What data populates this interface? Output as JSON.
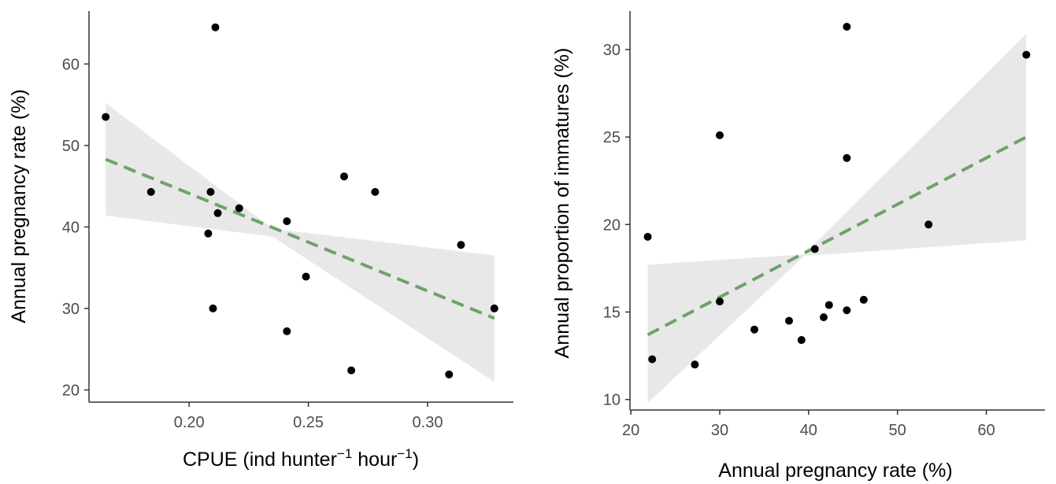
{
  "colors": {
    "points": "#000000",
    "fit_line": "#6fa26b",
    "ci_band": "#e8e8e8",
    "axis": "#333333",
    "tick_label": "#4d4d4d"
  },
  "chart_data": [
    {
      "type": "scatter",
      "title": "",
      "xlabel": "CPUE (ind hunter",
      "xlabel_sup1": "−1",
      "xlabel_mid": " hour",
      "xlabel_sup2": "−1",
      "xlabel_end": ")",
      "ylabel": "Annual pregnancy rate (%)",
      "xlim": [
        0.158,
        0.336
      ],
      "ylim": [
        18.5,
        66.5
      ],
      "xticks": [
        0.2,
        0.25,
        0.3
      ],
      "xtick_labels": [
        "0.20",
        "0.25",
        "0.30"
      ],
      "yticks": [
        20,
        30,
        40,
        50,
        60
      ],
      "ytick_labels": [
        "20",
        "30",
        "40",
        "50",
        "60"
      ],
      "grid": false,
      "points": [
        {
          "x": 0.165,
          "y": 53.5
        },
        {
          "x": 0.184,
          "y": 44.3
        },
        {
          "x": 0.208,
          "y": 39.2
        },
        {
          "x": 0.209,
          "y": 44.3
        },
        {
          "x": 0.21,
          "y": 30.0
        },
        {
          "x": 0.211,
          "y": 64.5
        },
        {
          "x": 0.212,
          "y": 41.7
        },
        {
          "x": 0.221,
          "y": 42.3
        },
        {
          "x": 0.241,
          "y": 40.7
        },
        {
          "x": 0.241,
          "y": 27.2
        },
        {
          "x": 0.249,
          "y": 33.9
        },
        {
          "x": 0.265,
          "y": 46.2
        },
        {
          "x": 0.268,
          "y": 22.4
        },
        {
          "x": 0.278,
          "y": 44.3
        },
        {
          "x": 0.309,
          "y": 21.9
        },
        {
          "x": 0.314,
          "y": 37.8
        },
        {
          "x": 0.328,
          "y": 30.0
        }
      ],
      "fit": {
        "style": "dashed",
        "x": [
          0.165,
          0.328
        ],
        "y": [
          48.3,
          28.8
        ]
      },
      "ci_band": {
        "x": [
          0.165,
          0.235,
          0.328
        ],
        "upper": [
          55.2,
          39.8,
          36.5
        ],
        "lower": [
          41.4,
          38.8,
          21.0
        ]
      }
    },
    {
      "type": "scatter",
      "title": "",
      "xlabel": "Annual pregnancy rate (%)",
      "ylabel": "Annual proportion of immatures (%)",
      "xlim": [
        19.9,
        66.6
      ],
      "ylim": [
        9.4,
        32.2
      ],
      "xticks": [
        20,
        30,
        40,
        50,
        60
      ],
      "xtick_labels": [
        "20",
        "30",
        "40",
        "50",
        "60"
      ],
      "yticks": [
        10,
        15,
        20,
        25,
        30
      ],
      "ytick_labels": [
        "10",
        "15",
        "20",
        "25",
        "30"
      ],
      "grid": false,
      "points": [
        {
          "x": 21.9,
          "y": 19.3
        },
        {
          "x": 22.4,
          "y": 12.3
        },
        {
          "x": 27.2,
          "y": 12.0
        },
        {
          "x": 30.0,
          "y": 25.1
        },
        {
          "x": 30.0,
          "y": 15.6
        },
        {
          "x": 33.9,
          "y": 14.0
        },
        {
          "x": 37.8,
          "y": 14.5
        },
        {
          "x": 39.2,
          "y": 13.4
        },
        {
          "x": 40.7,
          "y": 18.6
        },
        {
          "x": 41.7,
          "y": 14.7
        },
        {
          "x": 42.3,
          "y": 15.4
        },
        {
          "x": 44.3,
          "y": 31.3
        },
        {
          "x": 44.3,
          "y": 23.8
        },
        {
          "x": 44.3,
          "y": 15.1
        },
        {
          "x": 46.2,
          "y": 15.7
        },
        {
          "x": 53.5,
          "y": 20.0
        },
        {
          "x": 64.5,
          "y": 29.7
        }
      ],
      "fit": {
        "style": "dashed",
        "x": [
          21.9,
          64.5
        ],
        "y": [
          13.7,
          25.0
        ]
      },
      "ci_band": {
        "x": [
          21.9,
          39.5,
          64.5
        ],
        "upper": [
          17.7,
          18.3,
          30.9
        ],
        "lower": [
          9.8,
          18.2,
          19.1
        ]
      }
    }
  ]
}
